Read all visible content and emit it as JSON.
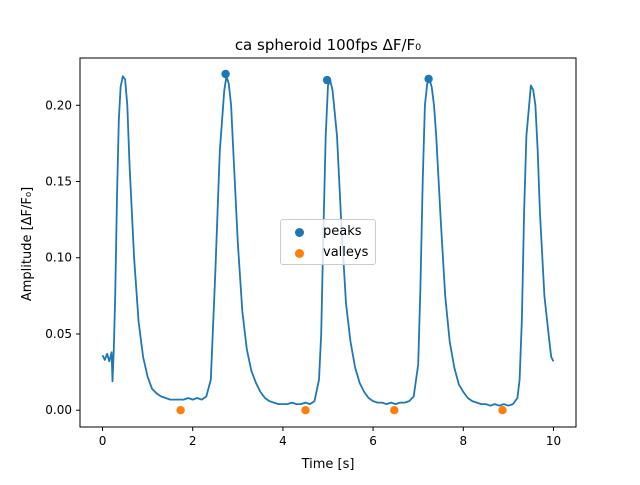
{
  "chart_data": {
    "type": "line",
    "title": "ca spheroid 100fps ΔF/F₀",
    "xlabel": "Time [s]",
    "ylabel": "Amplitude [ΔF/F₀]",
    "xlim": [
      -0.5,
      10.5
    ],
    "ylim": [
      -0.011,
      0.231
    ],
    "xticks": [
      0,
      2,
      4,
      6,
      8,
      10
    ],
    "xtick_labels": [
      "0",
      "2",
      "4",
      "6",
      "8",
      "10"
    ],
    "yticks": [
      0.0,
      0.05,
      0.1,
      0.15,
      0.2
    ],
    "ytick_labels": [
      "0.00",
      "0.05",
      "0.10",
      "0.15",
      "0.20"
    ],
    "grid": false,
    "legend_position": "center",
    "series": [
      {
        "color": "#1f77b4",
        "x": [
          0.0,
          0.05,
          0.1,
          0.15,
          0.2,
          0.22,
          0.25,
          0.28,
          0.32,
          0.36,
          0.4,
          0.45,
          0.5,
          0.55,
          0.6,
          0.7,
          0.8,
          0.9,
          1.0,
          1.1,
          1.2,
          1.3,
          1.4,
          1.5,
          1.6,
          1.7,
          1.8,
          1.9,
          2.0,
          2.1,
          2.2,
          2.3,
          2.4,
          2.5,
          2.6,
          2.7,
          2.75,
          2.8,
          2.85,
          2.9,
          3.0,
          3.1,
          3.2,
          3.3,
          3.4,
          3.5,
          3.6,
          3.7,
          3.8,
          3.9,
          4.0,
          4.1,
          4.2,
          4.3,
          4.4,
          4.5,
          4.6,
          4.7,
          4.8,
          4.85,
          4.9,
          4.95,
          5.0,
          5.05,
          5.1,
          5.2,
          5.3,
          5.4,
          5.5,
          5.6,
          5.7,
          5.8,
          5.9,
          6.0,
          6.1,
          6.2,
          6.3,
          6.4,
          6.5,
          6.6,
          6.7,
          6.8,
          6.9,
          7.0,
          7.05,
          7.1,
          7.15,
          7.2,
          7.25,
          7.3,
          7.35,
          7.4,
          7.5,
          7.6,
          7.7,
          7.8,
          7.9,
          8.0,
          8.1,
          8.2,
          8.3,
          8.4,
          8.5,
          8.6,
          8.7,
          8.8,
          8.9,
          9.0,
          9.1,
          9.2,
          9.25,
          9.3,
          9.35,
          9.4,
          9.5,
          9.55,
          9.6,
          9.65,
          9.7,
          9.8,
          9.9,
          9.95,
          10.0
        ],
        "y": [
          0.036,
          0.033,
          0.037,
          0.032,
          0.038,
          0.019,
          0.04,
          0.075,
          0.14,
          0.19,
          0.212,
          0.219,
          0.217,
          0.2,
          0.16,
          0.1,
          0.058,
          0.035,
          0.022,
          0.014,
          0.011,
          0.009,
          0.008,
          0.007,
          0.007,
          0.007,
          0.007,
          0.008,
          0.007,
          0.008,
          0.007,
          0.009,
          0.02,
          0.09,
          0.17,
          0.21,
          0.219,
          0.214,
          0.2,
          0.17,
          0.11,
          0.065,
          0.04,
          0.026,
          0.018,
          0.012,
          0.008,
          0.006,
          0.005,
          0.004,
          0.004,
          0.004,
          0.005,
          0.004,
          0.004,
          0.005,
          0.004,
          0.006,
          0.02,
          0.05,
          0.12,
          0.18,
          0.213,
          0.216,
          0.21,
          0.18,
          0.12,
          0.07,
          0.045,
          0.028,
          0.018,
          0.012,
          0.008,
          0.006,
          0.005,
          0.005,
          0.004,
          0.005,
          0.004,
          0.005,
          0.005,
          0.006,
          0.009,
          0.03,
          0.08,
          0.15,
          0.2,
          0.214,
          0.217,
          0.212,
          0.2,
          0.18,
          0.125,
          0.075,
          0.045,
          0.028,
          0.017,
          0.012,
          0.008,
          0.006,
          0.005,
          0.004,
          0.004,
          0.003,
          0.004,
          0.003,
          0.004,
          0.003,
          0.004,
          0.008,
          0.02,
          0.06,
          0.13,
          0.18,
          0.213,
          0.21,
          0.2,
          0.17,
          0.13,
          0.075,
          0.048,
          0.035,
          0.032
        ]
      }
    ],
    "scatter": [
      {
        "name": "peaks",
        "color": "#1f77b4",
        "x": [
          2.73,
          4.98,
          7.23
        ],
        "y": [
          0.2205,
          0.2165,
          0.2173
        ]
      },
      {
        "name": "valleys",
        "color": "#ff7f0e",
        "x": [
          1.73,
          4.5,
          6.47,
          8.87
        ],
        "y": [
          0.0,
          0.0,
          0.0,
          0.0
        ]
      }
    ]
  }
}
